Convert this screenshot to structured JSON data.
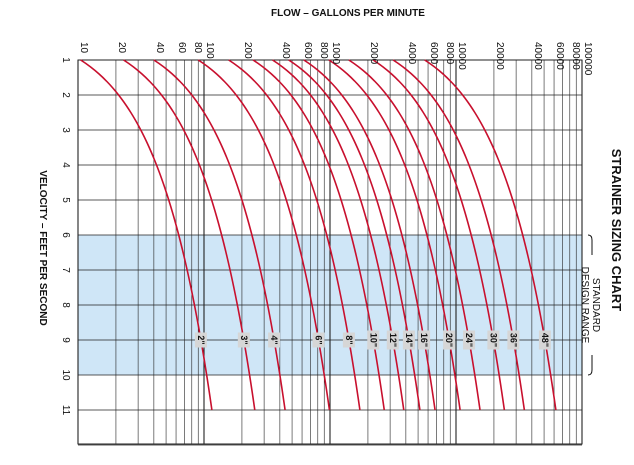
{
  "chart_data": {
    "type": "line",
    "title": "STRAINER SIZING CHART",
    "xlabel": "FLOW – GALLONS PER MINUTE",
    "ylabel": "VELOCITY – FEET PER SECOND",
    "x_scale": "log",
    "xlim": [
      10,
      100000
    ],
    "ylim": [
      1,
      12
    ],
    "x_tick_labels": [
      "10",
      "20",
      "40",
      "60",
      "80",
      "100",
      "200",
      "400",
      "600",
      "800",
      "1000",
      "2000",
      "4000",
      "6000",
      "8000",
      "10000",
      "20000",
      "40000",
      "60000",
      "80000",
      "100000"
    ],
    "y_tick_labels": [
      "1",
      "2",
      "3",
      "4",
      "5",
      "6",
      "7",
      "8",
      "9",
      "10",
      "11"
    ],
    "band": {
      "from": 6,
      "to": 10,
      "label": "STANDARD DESIGN RANGE"
    },
    "label_velocity": 9,
    "series": [
      {
        "name": "2\"",
        "x": [
          10.5,
          105
        ]
      },
      {
        "name": "3\"",
        "x": [
          23,
          230
        ]
      },
      {
        "name": "4\"",
        "x": [
          40,
          400
        ]
      },
      {
        "name": "6\"",
        "x": [
          90,
          900
        ]
      },
      {
        "name": "8\"",
        "x": [
          157,
          1570
        ]
      },
      {
        "name": "10\"",
        "x": [
          245,
          2450
        ]
      },
      {
        "name": "12\"",
        "x": [
          350,
          3500
        ]
      },
      {
        "name": "14\"",
        "x": [
          470,
          4700
        ]
      },
      {
        "name": "16\"",
        "x": [
          620,
          6200
        ]
      },
      {
        "name": "20\"",
        "x": [
          980,
          9800
        ]
      },
      {
        "name": "24\"",
        "x": [
          1410,
          14100
        ]
      },
      {
        "name": "30\"",
        "x": [
          2200,
          22000
        ]
      },
      {
        "name": "36\"",
        "x": [
          3170,
          31700
        ]
      },
      {
        "name": "48\"",
        "x": [
          5640,
          56400
        ]
      }
    ],
    "y": [
      1,
      10
    ],
    "grid": true,
    "colors": {
      "curve": "#c8102e",
      "band": "#cfe6f7",
      "grid": "#222222",
      "label_bg": "#d6d6d6"
    }
  }
}
